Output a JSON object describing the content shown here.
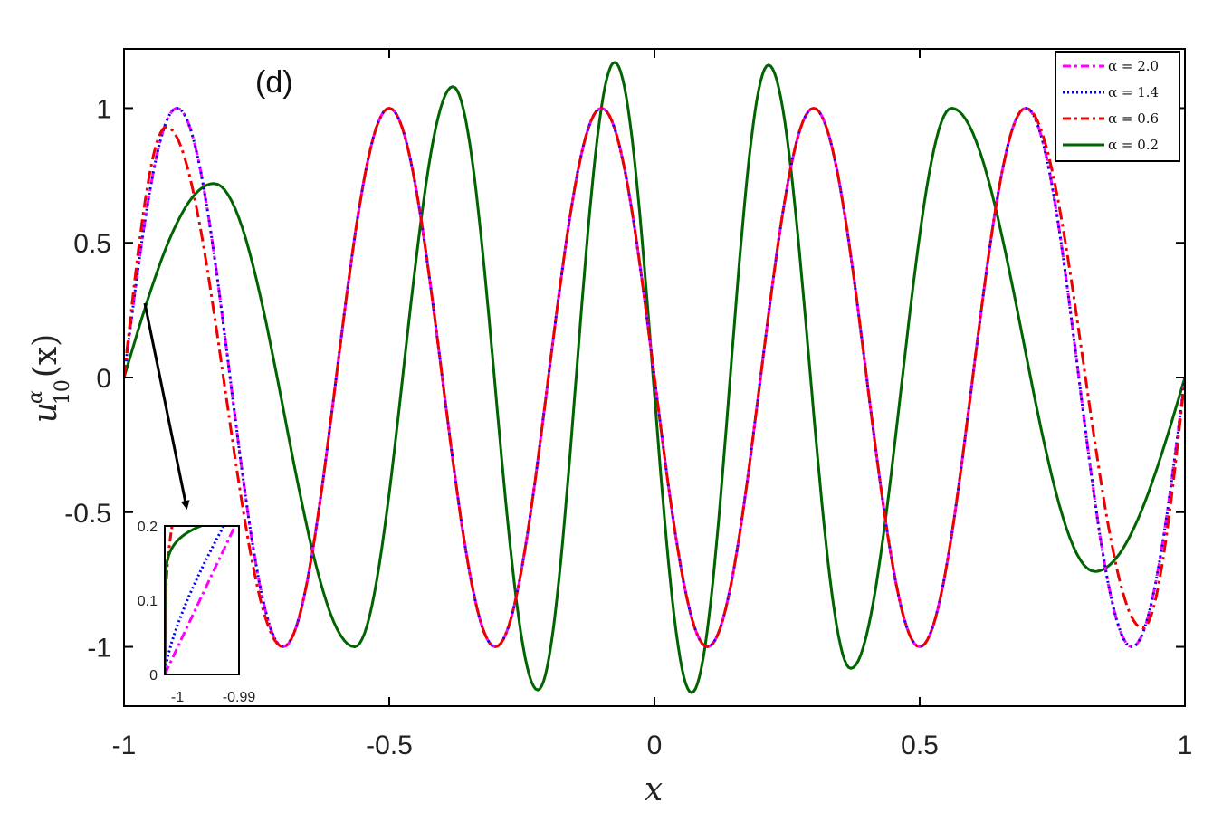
{
  "chart_data": {
    "type": "line",
    "panel_label": "(d)",
    "xlabel": "x",
    "ylabel": "u10α(x)",
    "ylabel_parts": {
      "base": "u",
      "sup": "α",
      "sub": "10",
      "tail": "(x)"
    },
    "xlim": [
      -1,
      1
    ],
    "ylim": [
      -1.22,
      1.22
    ],
    "x_ticks": [
      -1,
      -0.5,
      0,
      0.5,
      1
    ],
    "x_tick_labels": [
      "-1",
      "-0.5",
      "0",
      "0.5",
      "1"
    ],
    "y_ticks": [
      1,
      0.5,
      0,
      -0.5,
      -1
    ],
    "y_tick_labels": [
      "1",
      "0.5",
      "0",
      "-0.5",
      "-1"
    ],
    "grid": false,
    "legend_position": "top-right",
    "series": [
      {
        "name": "α = 2.0",
        "color": "#ff00ff",
        "style": "dashdot",
        "x": [
          -1,
          -0.9,
          -0.7,
          -0.5,
          -0.3,
          -0.1,
          0.1,
          0.3,
          0.5,
          0.7,
          0.9,
          1
        ],
        "y": [
          0,
          1,
          -1,
          1,
          -1,
          1,
          -1,
          1,
          -1,
          1,
          -1,
          0
        ]
      },
      {
        "name": "α = 1.4",
        "color": "#0000ee",
        "style": "dotted",
        "x": [
          -1,
          -0.9,
          -0.7,
          -0.5,
          -0.3,
          -0.1,
          0.1,
          0.3,
          0.5,
          0.7,
          0.9,
          1
        ],
        "y": [
          0,
          1,
          -1,
          1,
          -1,
          1,
          -1,
          1,
          -1,
          1,
          -1,
          0
        ]
      },
      {
        "name": "α = 0.6",
        "color": "#ee0000",
        "style": "dashdot",
        "x": [
          -1,
          -0.92,
          -0.7,
          -0.5,
          -0.3,
          -0.1,
          0.1,
          0.3,
          0.5,
          0.7,
          0.92,
          1
        ],
        "y": [
          0,
          0.93,
          -1,
          1,
          -1,
          1,
          -1,
          1,
          -1,
          1,
          -0.93,
          0
        ]
      },
      {
        "name": "α = 0.2",
        "color": "#006400",
        "style": "solid",
        "x": [
          -1,
          -0.83,
          -0.565,
          -0.38,
          -0.22,
          -0.075,
          0.07,
          0.215,
          0.37,
          0.56,
          0.83,
          1
        ],
        "y": [
          0,
          0.72,
          -1,
          1.08,
          -1.16,
          1.17,
          -1.17,
          1.16,
          -1.08,
          1,
          -0.72,
          0
        ]
      }
    ],
    "inset": {
      "xlim": [
        -1,
        -0.99
      ],
      "ylim": [
        0,
        0.2
      ],
      "x_tick_labels": [
        "-1",
        "-0.99"
      ],
      "y_tick_labels": [
        "0.2",
        "0.1",
        "0"
      ]
    }
  }
}
